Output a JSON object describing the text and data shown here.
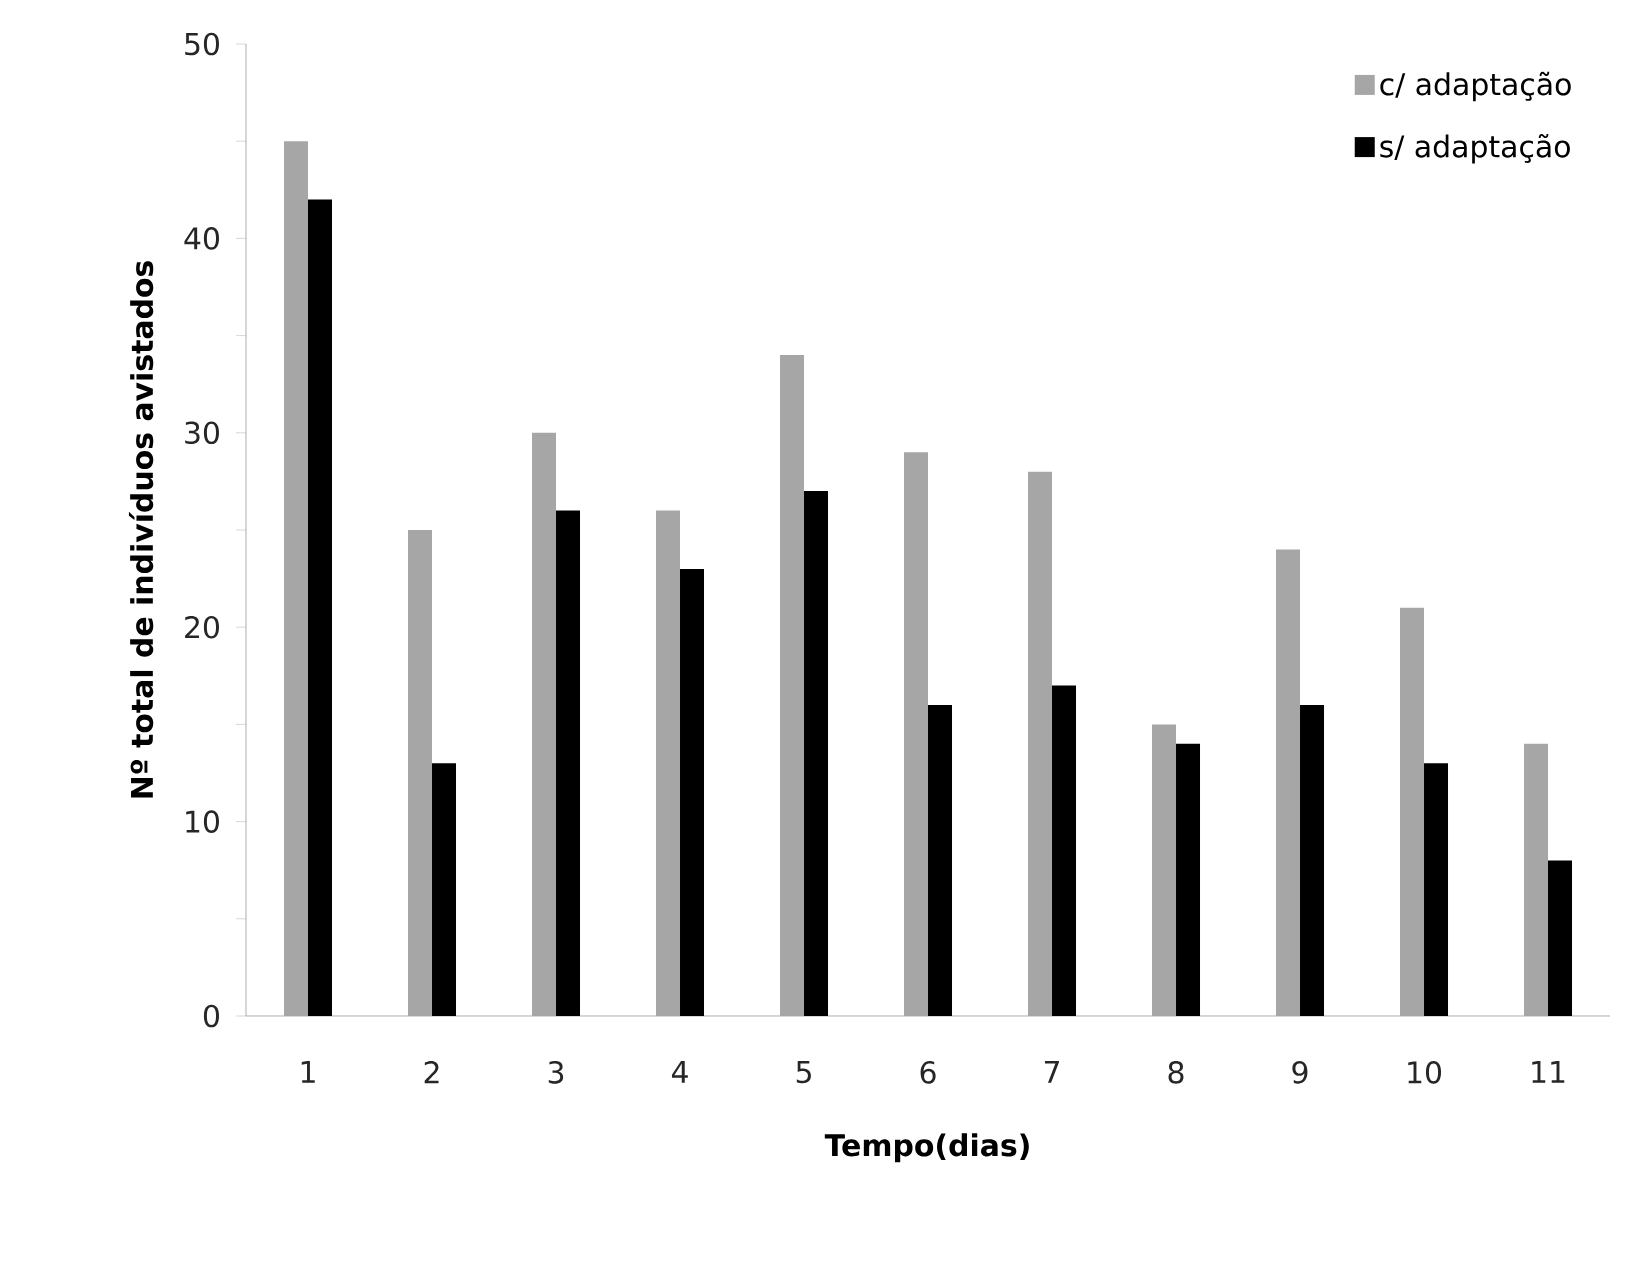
{
  "chart_data": {
    "type": "bar",
    "xlabel": "Tempo(dias)",
    "ylabel": "Nº total  de indivíduos avistados",
    "categories": [
      "1",
      "2",
      "3",
      "4",
      "5",
      "6",
      "7",
      "8",
      "9",
      "10",
      "11"
    ],
    "series": [
      {
        "name": "c/ adaptação",
        "color": "#a6a6a6",
        "values": [
          45,
          25,
          30,
          26,
          34,
          29,
          28,
          15,
          24,
          21,
          14
        ]
      },
      {
        "name": "s/ adaptação",
        "color": "#000000",
        "values": [
          42,
          13,
          26,
          23,
          27,
          16,
          17,
          14,
          16,
          13,
          8
        ]
      }
    ],
    "ylim": [
      0,
      50
    ],
    "yticks": [
      0,
      {
        "value": 5,
        "label": null
      },
      10,
      {
        "value": 15,
        "label": null
      },
      20,
      {
        "value": 25,
        "label": null
      },
      30,
      {
        "value": 35,
        "label": null
      },
      40,
      {
        "value": 45,
        "label": null
      },
      50
    ],
    "grid": false,
    "legend": "top right"
  }
}
